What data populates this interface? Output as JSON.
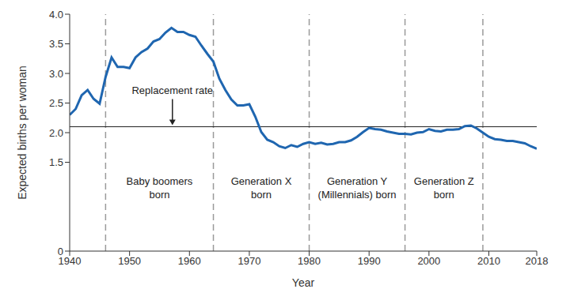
{
  "chart_data": {
    "type": "line",
    "x_label": "Year",
    "y_label": "Expected births per woman",
    "color": "#1f66b0",
    "grid": false,
    "xlim": [
      1940,
      2018
    ],
    "xticks": [
      1940,
      1950,
      1960,
      1970,
      1980,
      1990,
      2000,
      2010,
      2018
    ],
    "ylim": [
      0,
      4
    ],
    "yticks": [
      0,
      1.5,
      {
        "value": 2,
        "label": "2.0"
      },
      2.5,
      {
        "value": 3,
        "label": "3.0"
      },
      3.5,
      {
        "value": 4,
        "label": "4.0"
      }
    ],
    "x": [
      1940,
      1941,
      1942,
      1943,
      1944,
      1945,
      1946,
      1947,
      1948,
      1949,
      1950,
      1951,
      1952,
      1953,
      1954,
      1955,
      1956,
      1957,
      1958,
      1959,
      1960,
      1961,
      1962,
      1963,
      1964,
      1965,
      1966,
      1967,
      1968,
      1969,
      1970,
      1971,
      1972,
      1973,
      1974,
      1975,
      1976,
      1977,
      1978,
      1979,
      1980,
      1981,
      1982,
      1983,
      1984,
      1985,
      1986,
      1987,
      1988,
      1989,
      1990,
      1991,
      1992,
      1993,
      1994,
      1995,
      1996,
      1997,
      1998,
      1999,
      2000,
      2001,
      2002,
      2003,
      2004,
      2005,
      2006,
      2007,
      2008,
      2009,
      2010,
      2011,
      2012,
      2013,
      2014,
      2015,
      2016,
      2017,
      2018
    ],
    "values": [
      2.3,
      2.4,
      2.63,
      2.72,
      2.57,
      2.49,
      2.94,
      3.27,
      3.11,
      3.11,
      3.09,
      3.27,
      3.36,
      3.42,
      3.54,
      3.58,
      3.69,
      3.77,
      3.7,
      3.7,
      3.65,
      3.62,
      3.47,
      3.33,
      3.2,
      2.91,
      2.72,
      2.56,
      2.46,
      2.46,
      2.48,
      2.27,
      2.01,
      1.88,
      1.84,
      1.77,
      1.74,
      1.79,
      1.76,
      1.81,
      1.84,
      1.81,
      1.83,
      1.8,
      1.81,
      1.84,
      1.84,
      1.87,
      1.93,
      2.01,
      2.08,
      2.06,
      2.05,
      2.02,
      2.0,
      1.98,
      1.98,
      1.97,
      2.0,
      2.01,
      2.06,
      2.03,
      2.02,
      2.05,
      2.05,
      2.06,
      2.11,
      2.12,
      2.07,
      2.0,
      1.93,
      1.89,
      1.88,
      1.86,
      1.86,
      1.84,
      1.82,
      1.77,
      1.73
    ],
    "reference_line": {
      "value": 2.1,
      "label": "Replacement rate"
    },
    "dividers": [
      1946,
      1964,
      1980,
      1996,
      2009
    ],
    "periods": [
      {
        "start": 1946,
        "end": 1964,
        "lines": [
          "Baby boomers",
          "born"
        ]
      },
      {
        "start": 1964,
        "end": 1980,
        "lines": [
          "Generation X",
          "born"
        ]
      },
      {
        "start": 1980,
        "end": 1996,
        "lines": [
          "Generation Y",
          "(Millennials) born"
        ]
      },
      {
        "start": 1996,
        "end": 2009,
        "lines": [
          "Generation Z",
          "born"
        ]
      }
    ]
  }
}
